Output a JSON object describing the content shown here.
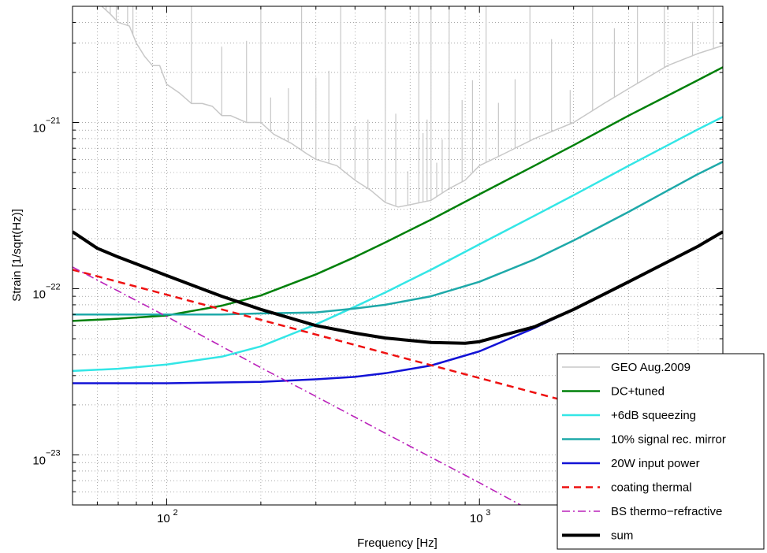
{
  "chart_data": {
    "type": "line",
    "xlabel": "Frequency [Hz]",
    "ylabel": "Strain [1/sqrt(Hz)]",
    "x_scale": "log",
    "y_scale": "log",
    "xlim": [
      50,
      6000
    ],
    "ylim": [
      5e-24,
      5e-21
    ],
    "grid": true,
    "legend_position": "bottom-right",
    "x_ticks": [
      {
        "value": 100,
        "base": "10",
        "exp": "2"
      },
      {
        "value": 1000,
        "base": "10",
        "exp": "3"
      }
    ],
    "y_ticks": [
      {
        "value": 1e-23,
        "base": "10",
        "exp": "−23"
      },
      {
        "value": 1e-22,
        "base": "10",
        "exp": "−22"
      },
      {
        "value": 1e-21,
        "base": "10",
        "exp": "−21"
      }
    ],
    "series": [
      {
        "name": "GEO Aug.2009",
        "color": "#c8c8c8",
        "width": 1.5,
        "dash": "",
        "x": [
          62,
          66,
          70,
          76,
          80,
          85,
          90,
          95,
          100,
          110,
          120,
          130,
          140,
          150,
          160,
          180,
          200,
          220,
          250,
          280,
          300,
          350,
          400,
          450,
          500,
          550,
          600,
          700,
          800,
          900,
          1000,
          1200,
          1500,
          2000,
          2500,
          3000,
          4000,
          5000,
          6000
        ],
        "y": [
          5e-21,
          4.5e-21,
          4e-21,
          3.8e-21,
          3e-21,
          2.5e-21,
          2.2e-21,
          2.2e-21,
          1.7e-21,
          1.5e-21,
          1.3e-21,
          1.3e-21,
          1.25e-21,
          1.1e-21,
          1.1e-21,
          1e-21,
          1e-21,
          8.5e-22,
          7.5e-22,
          6.5e-22,
          6e-22,
          5.5e-22,
          4.5e-22,
          3.9e-22,
          3.3e-22,
          3.1e-22,
          3.2e-22,
          3.4e-22,
          4e-22,
          4.5e-22,
          5.5e-22,
          6.5e-22,
          8e-22,
          1e-21,
          1.3e-21,
          1.6e-21,
          2.2e-21,
          2.6e-21,
          2.9e-21
        ]
      },
      {
        "name": "DC+tuned",
        "color": "#00800a",
        "width": 2.5,
        "dash": "",
        "x": [
          50,
          70,
          100,
          150,
          200,
          300,
          400,
          500,
          700,
          1000,
          1500,
          2000,
          3000,
          4000,
          5000,
          6000
        ],
        "y": [
          6.4e-23,
          6.6e-23,
          6.9e-23,
          7.9e-23,
          9.1e-23,
          1.22e-22,
          1.55e-22,
          1.9e-22,
          2.6e-22,
          3.7e-22,
          5.5e-22,
          7.3e-22,
          1.1e-21,
          1.45e-21,
          1.8e-21,
          2.15e-21
        ]
      },
      {
        "name": "+6dB squeezing",
        "color": "#33e6e6",
        "width": 2.5,
        "dash": "",
        "x": [
          50,
          70,
          100,
          150,
          200,
          300,
          400,
          500,
          700,
          1000,
          1500,
          2000,
          3000,
          4000,
          5000,
          6000
        ],
        "y": [
          3.2e-23,
          3.3e-23,
          3.5e-23,
          3.9e-23,
          4.5e-23,
          6.1e-23,
          7.8e-23,
          9.5e-23,
          1.3e-22,
          1.85e-22,
          2.75e-22,
          3.65e-22,
          5.5e-22,
          7.3e-22,
          9.1e-22,
          1.08e-21
        ]
      },
      {
        "name": "10% signal rec. mirror",
        "color": "#1ea9a9",
        "width": 2.5,
        "dash": "",
        "x": [
          50,
          70,
          100,
          150,
          200,
          300,
          400,
          500,
          700,
          1000,
          1500,
          2000,
          3000,
          4000,
          5000,
          6000
        ],
        "y": [
          7e-23,
          7e-23,
          7e-23,
          7e-23,
          7.1e-23,
          7.2e-23,
          7.6e-23,
          8e-23,
          9e-23,
          1.1e-22,
          1.5e-22,
          1.95e-22,
          2.9e-22,
          3.9e-22,
          4.9e-22,
          5.8e-22
        ]
      },
      {
        "name": "20W input power",
        "color": "#1212d6",
        "width": 2.5,
        "dash": "",
        "x": [
          50,
          100,
          200,
          300,
          400,
          500,
          700,
          1000,
          1500,
          2000,
          3000,
          4000,
          5000,
          6000
        ],
        "y": [
          2.7e-23,
          2.7e-23,
          2.75e-23,
          2.85e-23,
          2.95e-23,
          3.1e-23,
          3.45e-23,
          4.2e-23,
          5.8e-23,
          7.5e-23,
          1.1e-22,
          1.45e-22,
          1.8e-22,
          2.2e-22
        ]
      },
      {
        "name": "coating thermal",
        "color": "#ee1111",
        "width": 2.5,
        "dash": "9,6",
        "x": [
          50,
          100,
          200,
          300,
          500,
          1000,
          2000,
          2500
        ],
        "y": [
          1.3e-22,
          9.2e-23,
          6.5e-23,
          5.3e-23,
          4.1e-23,
          2.9e-23,
          2.05e-23,
          1.85e-23
        ]
      },
      {
        "name": "BS thermo−refractive",
        "color": "#bb22bb",
        "width": 1.6,
        "dash": "10,4,2,4",
        "x": [
          50,
          100,
          200,
          300,
          500,
          1000,
          1500
        ],
        "y": [
          1.35e-22,
          6.8e-23,
          3.35e-23,
          2.25e-23,
          1.35e-23,
          6.8e-24,
          4.5e-24
        ]
      },
      {
        "name": "sum",
        "color": "#000000",
        "width": 4,
        "dash": "",
        "x": [
          50,
          60,
          70,
          100,
          150,
          200,
          300,
          400,
          500,
          700,
          900,
          1000,
          1500,
          2000,
          3000,
          4000,
          5000,
          6000
        ],
        "y": [
          2.2e-22,
          1.75e-22,
          1.55e-22,
          1.2e-22,
          9e-23,
          7.5e-23,
          6e-23,
          5.4e-23,
          5.05e-23,
          4.75e-23,
          4.7e-23,
          4.8e-23,
          5.9e-23,
          7.5e-23,
          1.1e-22,
          1.45e-22,
          1.8e-22,
          2.2e-22
        ]
      }
    ]
  }
}
